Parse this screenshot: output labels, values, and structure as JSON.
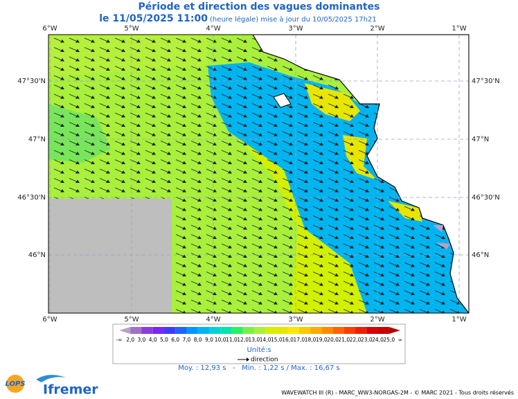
{
  "header": {
    "title": "Période et direction des vagues dominantes",
    "date": "le 11/05/2025 11:00",
    "subtitle": "(heure légale) mise à jour du 10/05/2025 17h21"
  },
  "map": {
    "longitudes": [
      "6°W",
      "5°W",
      "4°W",
      "3°W",
      "2°W",
      "1°W"
    ],
    "latitudes": [
      "47°30'N",
      "47°N",
      "46°30'N",
      "46°N"
    ]
  },
  "legend": {
    "labels": [
      "-∞",
      "2,0",
      "3,0",
      "4,0",
      "5,0",
      "6,0",
      "7,0",
      "8,0",
      "9,0",
      "10,0",
      "11,0",
      "12,0",
      "13,0",
      "14,0",
      "15,0",
      "16,0",
      "17,0",
      "18,0",
      "19,0",
      "20,0",
      "21,0",
      "22,0",
      "23,0",
      "24,0",
      "25,0",
      "∞"
    ],
    "colors": [
      "#b9a0c8",
      "#a070c8",
      "#8c3cdc",
      "#7828f0",
      "#3c3cff",
      "#1e64ff",
      "#0096ff",
      "#00b4f0",
      "#00d2dc",
      "#00e6aa",
      "#28f064",
      "#78f046",
      "#a8f03c",
      "#d2f000",
      "#e6e600",
      "#ffe600",
      "#ffc800",
      "#ffaa00",
      "#ff8c00",
      "#ff6400",
      "#ff3c00",
      "#f01e00",
      "#dc0000",
      "#c80000",
      "#b40000"
    ],
    "unit": "Unité:s",
    "direction": "direction",
    "stats": "Moy. : 12,93 s   -   Min. : 1,22 s / Max. : 16,67 s"
  },
  "footer": {
    "lops": "LOPS",
    "ifremer": "Ifremer",
    "credits": "WAVEWATCH III (R) - MARC_WW3-NORGAS-2M - © MARC 2021 - Tous droits réservés"
  }
}
